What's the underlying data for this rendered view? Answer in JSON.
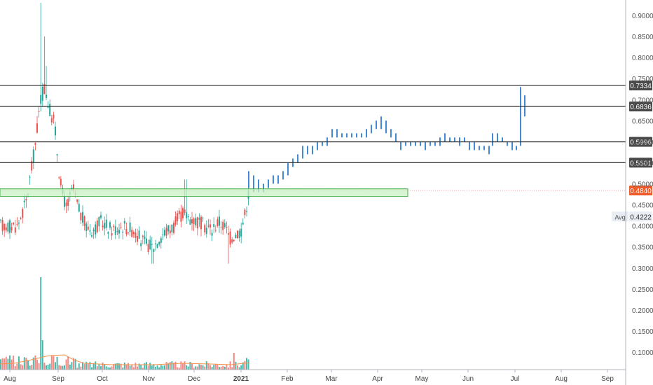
{
  "chart_data": {
    "type": "ohlc",
    "x_axis_labels": [
      "Aug",
      "Sep",
      "Oct",
      "Nov",
      "Dec",
      "2021",
      "Feb",
      "Mar",
      "Apr",
      "May",
      "Jun",
      "Jul",
      "Aug",
      "Sep"
    ],
    "y_axis_labels": [
      "0.9000",
      "0.8500",
      "0.8000",
      "0.7500",
      "0.7000",
      "0.6500",
      "0.6000",
      "0.5500",
      "0.5000",
      "0.4500",
      "0.4000",
      "0.3500",
      "0.3000",
      "0.2500",
      "0.2000",
      "0.1500",
      "0.1000"
    ],
    "ylim": [
      0.06,
      0.92
    ],
    "horizontal_levels": [
      {
        "value": 0.7334,
        "label": "0.7334"
      },
      {
        "value": 0.6836,
        "label": "0.6836"
      },
      {
        "value": 0.5996,
        "label": "0.5996"
      },
      {
        "value": 0.5501,
        "label": "0.5501"
      }
    ],
    "last_price": {
      "value": 0.484,
      "label": "0.4840",
      "color": "#ef5b2b"
    },
    "average": {
      "value": 0.4222,
      "label": "0.4222",
      "tag": "Avg"
    },
    "support_zone": {
      "low": 0.47,
      "high": 0.488,
      "color": "#c9f0c3",
      "border": "#4caf50"
    },
    "colors": {
      "up": "#26a69a",
      "down": "#ef5350",
      "projection": "#2e7dd1",
      "axis": "#aeb4bf"
    }
  }
}
